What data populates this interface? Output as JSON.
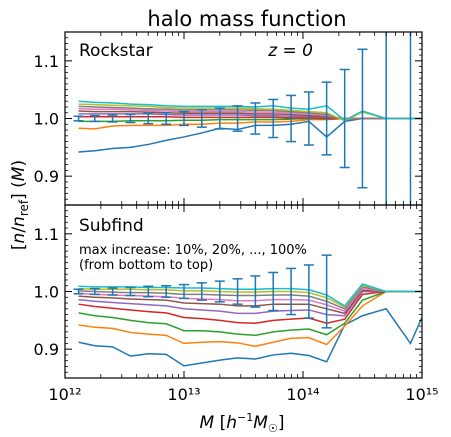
{
  "figure": {
    "title": "halo mass function",
    "ylabel_html": "[n/n<sub>ref</sub>] (M)",
    "xlabel": "M [h⁻¹M☉]"
  },
  "chart_data": [
    {
      "type": "line",
      "panel": "top",
      "panel_label": "Rockstar",
      "annotation": "z = 0",
      "xscale": "log",
      "xlim": [
        1000000000000.0,
        1000000000000000.0
      ],
      "ylim": [
        0.85,
        1.15
      ],
      "yticks": [
        0.9,
        1.0,
        1.1
      ],
      "ytick_labels": [
        "0.9",
        "1.0",
        "1.1"
      ],
      "xticks": [
        1000000000000.0,
        10000000000000.0,
        100000000000000.0,
        1000000000000000.0
      ],
      "xtick_labels": [
        "10¹²",
        "10¹³",
        "10¹⁴",
        "10¹⁵"
      ],
      "x": [
        1300000000000.0,
        1780000000000.0,
        2510000000000.0,
        3550000000000.0,
        5010000000000.0,
        7080000000000.0,
        10000000000000.0,
        14100000000000.0,
        20000000000000.0,
        28200000000000.0,
        39800000000000.0,
        56200000000000.0,
        79400000000000.0,
        112000000000000.0,
        158000000000000.0,
        224000000000000.0,
        316000000000000.0,
        500000000000000.0,
        800000000000000.0,
        1000000000000000.0
      ],
      "series": [
        {
          "color": "#1f77b4",
          "values": [
            0.942,
            0.944,
            0.948,
            0.95,
            0.955,
            0.962,
            0.968,
            0.975,
            0.983,
            0.981,
            0.988,
            0.988,
            0.99,
            0.995,
            0.968,
            0.995,
            1.0,
            1.0,
            1.0,
            1.0
          ]
        },
        {
          "color": "#ff7f0e",
          "values": [
            0.983,
            0.982,
            0.987,
            0.988,
            0.988,
            0.988,
            0.99,
            0.99,
            0.992,
            0.992,
            0.994,
            0.994,
            0.995,
            0.998,
            0.998,
            1.0,
            1.0,
            1.0,
            1.0,
            1.0
          ]
        },
        {
          "color": "#2ca02c",
          "values": [
            0.995,
            0.995,
            0.995,
            0.996,
            0.996,
            0.996,
            0.997,
            0.997,
            0.998,
            0.998,
            0.998,
            0.998,
            0.999,
            1.0,
            0.999,
            1.0,
            1.0,
            1.0,
            1.0,
            1.0
          ]
        },
        {
          "color": "#d62728",
          "values": [
            1.003,
            1.003,
            1.003,
            1.003,
            1.003,
            1.003,
            1.002,
            1.002,
            1.002,
            1.002,
            1.002,
            1.002,
            1.001,
            1.001,
            1.0,
            1.0,
            1.0,
            1.0,
            1.0,
            1.0
          ]
        },
        {
          "color": "#9467bd",
          "values": [
            1.008,
            1.008,
            1.008,
            1.008,
            1.008,
            1.007,
            1.006,
            1.006,
            1.006,
            1.006,
            1.005,
            1.005,
            1.004,
            1.003,
            1.002,
            1.0,
            1.0,
            1.0,
            1.0,
            1.0
          ]
        },
        {
          "color": "#8c564b",
          "values": [
            1.013,
            1.012,
            1.012,
            1.012,
            1.011,
            1.01,
            1.009,
            1.009,
            1.009,
            1.009,
            1.008,
            1.008,
            1.007,
            1.005,
            1.003,
            1.0,
            1.0,
            1.0,
            1.0,
            1.0
          ]
        },
        {
          "color": "#e377c2",
          "values": [
            1.017,
            1.016,
            1.016,
            1.015,
            1.014,
            1.013,
            1.012,
            1.012,
            1.012,
            1.012,
            1.011,
            1.011,
            1.01,
            1.008,
            1.005,
            1.0,
            1.0,
            1.0,
            1.0,
            1.0
          ]
        },
        {
          "color": "#7f7f7f",
          "values": [
            1.021,
            1.02,
            1.019,
            1.018,
            1.017,
            1.016,
            1.015,
            1.015,
            1.015,
            1.015,
            1.014,
            1.014,
            1.012,
            1.01,
            1.007,
            0.998,
            1.0,
            1.0,
            1.0,
            1.0
          ]
        },
        {
          "color": "#bcbd22",
          "values": [
            1.025,
            1.024,
            1.023,
            1.022,
            1.021,
            1.019,
            1.018,
            1.018,
            1.018,
            1.018,
            1.017,
            1.016,
            1.014,
            1.012,
            1.01,
            0.996,
            1.011,
            1.0,
            1.0,
            1.0
          ]
        },
        {
          "color": "#17becf",
          "values": [
            1.03,
            1.028,
            1.027,
            1.025,
            1.024,
            1.022,
            1.021,
            1.021,
            1.021,
            1.021,
            1.02,
            1.022,
            1.018,
            1.016,
            1.022,
            0.997,
            1.013,
            1.0,
            1.0,
            1.0
          ]
        }
      ],
      "errorbars": {
        "color": "#1f77b4",
        "x": [
          1300000000000.0,
          1780000000000.0,
          2510000000000.0,
          3550000000000.0,
          5010000000000.0,
          7080000000000.0,
          10000000000000.0,
          14100000000000.0,
          20000000000000.0,
          28200000000000.0,
          39800000000000.0,
          56200000000000.0,
          79400000000000.0,
          112000000000000.0,
          158000000000000.0,
          224000000000000.0,
          316000000000000.0,
          500000000000000.0,
          800000000000000.0
        ],
        "center": [
          1.0,
          1.0,
          1.0,
          1.0,
          1.0,
          1.0,
          1.0,
          1.0,
          1.0,
          1.0,
          1.0,
          1.0,
          1.0,
          1.0,
          1.0,
          1.0,
          1.0,
          1.0,
          1.0
        ],
        "err": [
          0.004,
          0.005,
          0.006,
          0.007,
          0.009,
          0.01,
          0.012,
          0.015,
          0.018,
          0.022,
          0.027,
          0.033,
          0.04,
          0.046,
          0.063,
          0.085,
          0.12,
          0.4,
          0.4
        ]
      }
    },
    {
      "type": "line",
      "panel": "bottom",
      "panel_label": "Subfind",
      "annotation_lines": [
        "max increase: 10%, 20%, ..., 100%",
        "(from bottom to top)"
      ],
      "xscale": "log",
      "xlim": [
        1000000000000.0,
        1000000000000000.0
      ],
      "ylim": [
        0.85,
        1.15
      ],
      "yticks": [
        0.9,
        1.0,
        1.1
      ],
      "ytick_labels": [
        "0.9",
        "1.0",
        "1.1"
      ],
      "xticks": [
        1000000000000.0,
        10000000000000.0,
        100000000000000.0,
        1000000000000000.0
      ],
      "xtick_labels": [
        "10¹²",
        "10¹³",
        "10¹⁴",
        "10¹⁵"
      ],
      "x": [
        1300000000000.0,
        1780000000000.0,
        2510000000000.0,
        3550000000000.0,
        5010000000000.0,
        7080000000000.0,
        10000000000000.0,
        14100000000000.0,
        20000000000000.0,
        28200000000000.0,
        39800000000000.0,
        56200000000000.0,
        79400000000000.0,
        112000000000000.0,
        158000000000000.0,
        224000000000000.0,
        316000000000000.0,
        500000000000000.0,
        800000000000000.0,
        1000000000000000.0
      ],
      "series": [
        {
          "color": "#1f77b4",
          "values": [
            0.912,
            0.906,
            0.904,
            0.888,
            0.892,
            0.891,
            0.871,
            0.876,
            0.881,
            0.885,
            0.883,
            0.89,
            0.893,
            0.889,
            0.878,
            0.942,
            0.958,
            0.97,
            0.91,
            0.955
          ]
        },
        {
          "color": "#ff7f0e",
          "values": [
            0.942,
            0.938,
            0.936,
            0.929,
            0.926,
            0.924,
            0.91,
            0.912,
            0.913,
            0.911,
            0.905,
            0.912,
            0.919,
            0.92,
            0.908,
            0.94,
            0.975,
            1.0,
            1.0,
            1.0
          ]
        },
        {
          "color": "#2ca02c",
          "values": [
            0.963,
            0.958,
            0.955,
            0.95,
            0.946,
            0.944,
            0.932,
            0.932,
            0.93,
            0.926,
            0.924,
            0.93,
            0.933,
            0.935,
            0.925,
            0.945,
            0.985,
            1.0,
            1.0,
            1.0
          ]
        },
        {
          "color": "#d62728",
          "values": [
            0.978,
            0.974,
            0.971,
            0.968,
            0.965,
            0.963,
            0.955,
            0.953,
            0.95,
            0.946,
            0.945,
            0.95,
            0.952,
            0.954,
            0.945,
            0.952,
            0.995,
            1.0,
            1.0,
            1.0
          ]
        },
        {
          "color": "#9467bd",
          "values": [
            0.986,
            0.983,
            0.981,
            0.979,
            0.977,
            0.975,
            0.97,
            0.968,
            0.966,
            0.962,
            0.962,
            0.966,
            0.967,
            0.968,
            0.96,
            0.958,
            1.0,
            1.0,
            1.0,
            1.0
          ]
        },
        {
          "color": "#8c564b",
          "values": [
            0.992,
            0.99,
            0.989,
            0.987,
            0.986,
            0.985,
            0.98,
            0.979,
            0.978,
            0.975,
            0.975,
            0.978,
            0.978,
            0.978,
            0.97,
            0.962,
            1.002,
            1.0,
            1.0,
            1.0
          ]
        },
        {
          "color": "#e377c2",
          "values": [
            0.997,
            0.995,
            0.994,
            0.993,
            0.992,
            0.991,
            0.988,
            0.987,
            0.986,
            0.984,
            0.984,
            0.986,
            0.986,
            0.985,
            0.977,
            0.966,
            1.005,
            1.0,
            1.0,
            1.0
          ]
        },
        {
          "color": "#7f7f7f",
          "values": [
            1.001,
            1.0,
            0.999,
            0.998,
            0.998,
            0.997,
            0.995,
            0.995,
            0.994,
            0.993,
            0.993,
            0.994,
            0.994,
            0.992,
            0.983,
            0.97,
            1.008,
            1.0,
            1.0,
            1.0
          ]
        },
        {
          "color": "#bcbd22",
          "values": [
            1.005,
            1.004,
            1.004,
            1.004,
            1.003,
            1.003,
            1.001,
            1.001,
            1.0,
            0.999,
            0.999,
            1.0,
            1.0,
            0.998,
            0.989,
            0.973,
            1.011,
            1.0,
            1.0,
            1.0
          ]
        },
        {
          "color": "#17becf",
          "values": [
            1.009,
            1.008,
            1.008,
            1.008,
            1.007,
            1.007,
            1.006,
            1.006,
            1.005,
            1.004,
            1.004,
            1.005,
            1.005,
            1.003,
            0.994,
            0.975,
            1.013,
            1.0,
            1.0,
            1.0
          ]
        }
      ],
      "errorbars": {
        "color": "#1f77b4",
        "x": [
          1300000000000.0,
          1780000000000.0,
          2510000000000.0,
          3550000000000.0,
          5010000000000.0,
          7080000000000.0,
          10000000000000.0,
          14100000000000.0,
          20000000000000.0,
          28200000000000.0,
          39800000000000.0,
          56200000000000.0,
          79400000000000.0,
          112000000000000.0,
          158000000000000.0
        ],
        "center": [
          1.0,
          1.0,
          1.0,
          1.0,
          1.0,
          1.0,
          1.0,
          1.0,
          1.0,
          1.0,
          1.0,
          1.0,
          1.0,
          1.0,
          1.0
        ],
        "err": [
          0.004,
          0.005,
          0.006,
          0.007,
          0.009,
          0.01,
          0.012,
          0.015,
          0.018,
          0.022,
          0.027,
          0.033,
          0.04,
          0.046,
          0.063
        ]
      }
    }
  ]
}
